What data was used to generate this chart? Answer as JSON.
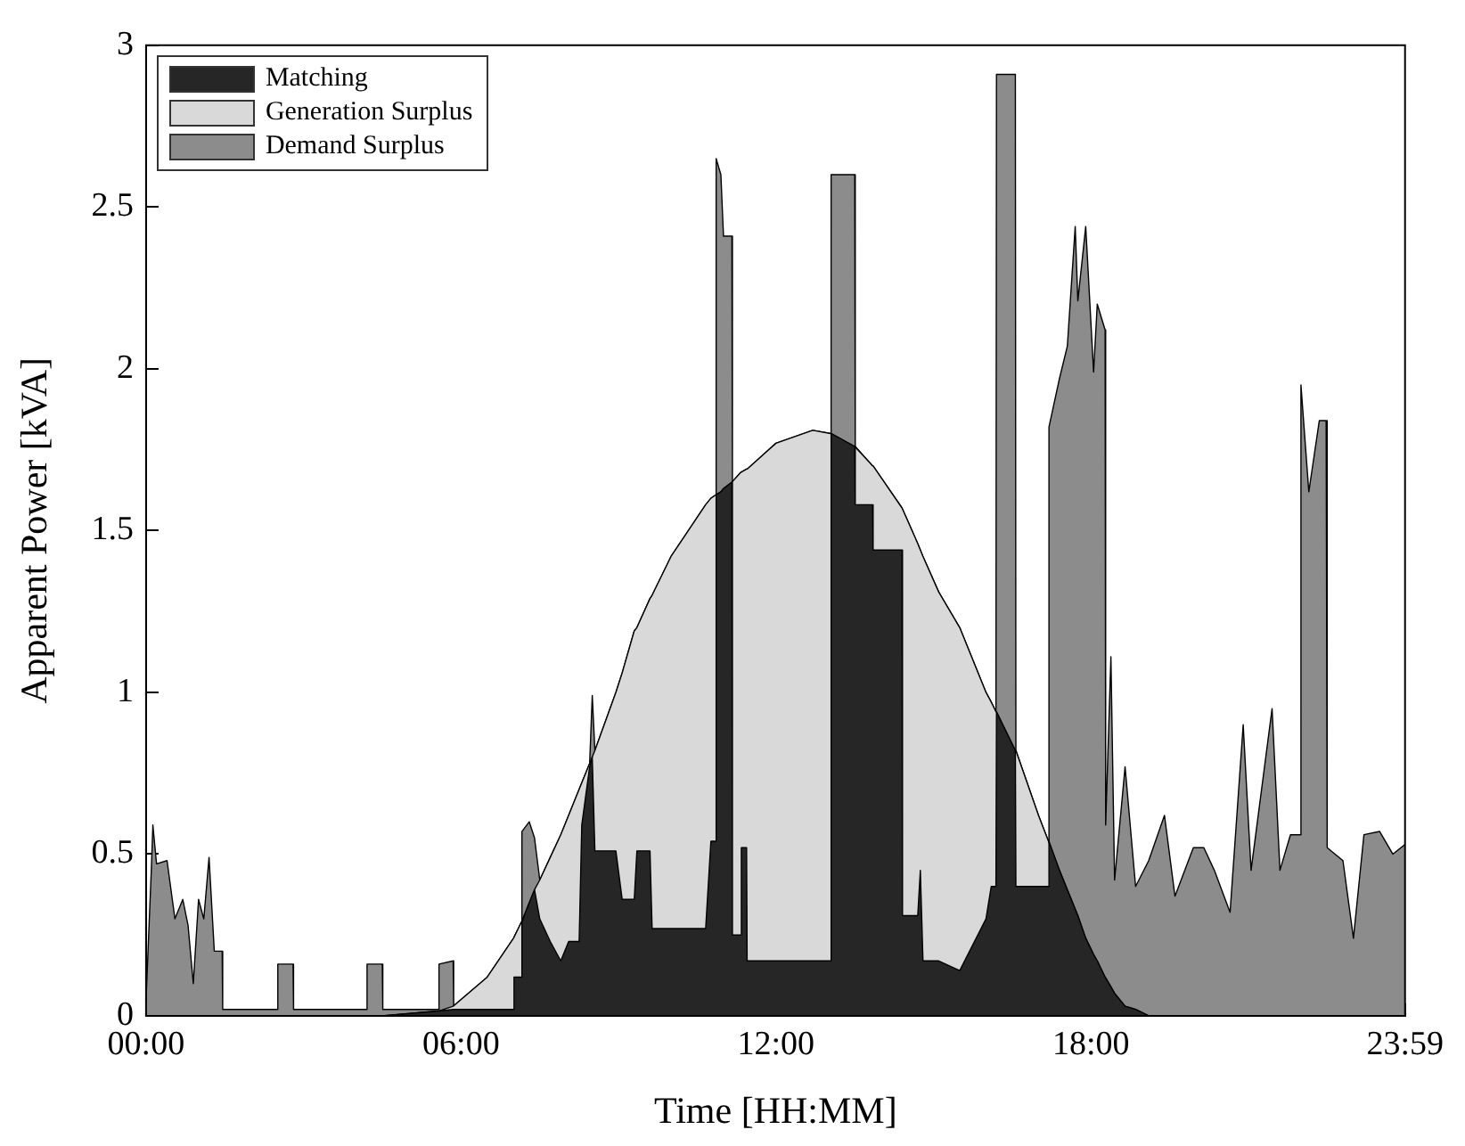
{
  "chart_data": {
    "type": "area",
    "stacked": true,
    "xlabel": "Time [HH:MM]",
    "ylabel": "Apparent Power [kVA]",
    "x": [
      0,
      0.1,
      0.13,
      0.2,
      0.4,
      0.55,
      0.7,
      0.8,
      0.9,
      1.0,
      1.1,
      1.2,
      1.3,
      1.45,
      1.46,
      2.5,
      2.51,
      2.8,
      2.81,
      4.2,
      4.21,
      4.5,
      4.51,
      5.57,
      5.58,
      5.85,
      5.86,
      6.5,
      7.0,
      7.01,
      7.15,
      7.16,
      7.3,
      7.4,
      7.5,
      7.7,
      7.9,
      8.05,
      8.25,
      8.3,
      8.45,
      8.5,
      8.55,
      8.95,
      9.07,
      9.3,
      9.35,
      9.6,
      9.64,
      10.0,
      10.66,
      10.76,
      10.85,
      10.86,
      10.95,
      11.0,
      11.16,
      11.17,
      11.33,
      11.34,
      11.44,
      11.45,
      12.0,
      12.7,
      13.04,
      13.05,
      13.5,
      13.51,
      13.84,
      13.85,
      14.4,
      14.41,
      14.7,
      14.75,
      14.8,
      15.1,
      15.5,
      16.0,
      16.1,
      16.19,
      16.2,
      16.56,
      16.57,
      17.0,
      17.19,
      17.2,
      17.4,
      17.55,
      17.7,
      17.75,
      17.9,
      18.05,
      18.12,
      18.27,
      18.28,
      18.38,
      18.45,
      18.65,
      18.85,
      19.1,
      19.4,
      19.6,
      19.95,
      20.15,
      20.35,
      20.65,
      20.9,
      21.05,
      21.45,
      21.6,
      21.8,
      21.98,
      22.0,
      22.15,
      22.35,
      22.48,
      22.5,
      22.8,
      23.0,
      23.2,
      23.5,
      23.75,
      23.983
    ],
    "series": [
      {
        "name": "Matching",
        "color": "#262626",
        "values": [
          0,
          0,
          0,
          0,
          0,
          0,
          0,
          0,
          0,
          0,
          0,
          0,
          0,
          0,
          0,
          0,
          0,
          0,
          0,
          0,
          0,
          0,
          0,
          0.015,
          0.015,
          0.02,
          0.02,
          0.02,
          0.02,
          0.12,
          0.12,
          0.29,
          0.35,
          0.39,
          0.3,
          0.23,
          0.17,
          0.23,
          0.23,
          0.59,
          0.77,
          0.8,
          0.51,
          0.51,
          0.36,
          0.36,
          0.51,
          0.51,
          0.27,
          0.27,
          0.27,
          0.54,
          0.54,
          1.61,
          1.62,
          1.63,
          1.65,
          0.25,
          0.25,
          0.52,
          0.52,
          0.17,
          0.17,
          0.17,
          0.17,
          1.8,
          1.76,
          1.58,
          1.58,
          1.44,
          1.44,
          0.31,
          0.31,
          0.45,
          0.17,
          0.17,
          0.14,
          0.3,
          0.4,
          0.4,
          0.94,
          0.82,
          0.4,
          0.4,
          0.4,
          0.54,
          0.45,
          0.39,
          0.33,
          0.31,
          0.24,
          0.19,
          0.17,
          0.12,
          0.12,
          0.09,
          0.07,
          0.03,
          0.02,
          0,
          0,
          0,
          0,
          0,
          0,
          0,
          0,
          0,
          0,
          0,
          0,
          0,
          0,
          0,
          0,
          0,
          0,
          0,
          0,
          0,
          0,
          0,
          0
        ]
      },
      {
        "name": "Generation Surplus",
        "color": "#d9d9d9",
        "values": [
          0,
          0,
          0,
          0,
          0,
          0,
          0,
          0,
          0,
          0,
          0,
          0,
          0,
          0,
          0,
          0,
          0,
          0,
          0,
          0,
          0,
          0,
          0,
          0,
          0,
          0.01,
          0.01,
          0.1,
          0.22,
          0.12,
          0.17,
          0,
          0,
          0,
          0.12,
          0.26,
          0.39,
          0.39,
          0.47,
          0.13,
          0.01,
          0,
          0.31,
          0.49,
          0.7,
          0.83,
          0.69,
          0.78,
          1.03,
          1.15,
          1.31,
          1.06,
          1.07,
          0,
          0,
          0,
          0,
          1.4,
          1.43,
          1.16,
          1.17,
          1.52,
          1.6,
          1.64,
          1.63,
          0,
          0,
          0.18,
          0.12,
          0.26,
          0.13,
          1.26,
          1.15,
          0.99,
          1.25,
          1.14,
          1.06,
          0.7,
          0.57,
          0.54,
          0,
          0,
          0.42,
          0.22,
          0.14,
          0,
          0,
          0,
          0,
          0,
          0,
          0,
          0,
          0,
          0,
          0,
          0,
          0,
          0,
          0,
          0,
          0,
          0,
          0,
          0,
          0,
          0,
          0,
          0,
          0,
          0,
          0,
          0,
          0,
          0,
          0,
          0,
          0,
          0,
          0,
          0,
          0,
          0
        ]
      },
      {
        "name": "Demand Surplus",
        "color": "#8c8c8c",
        "values": [
          0.05,
          0.45,
          0.59,
          0.47,
          0.48,
          0.3,
          0.36,
          0.28,
          0.1,
          0.36,
          0.3,
          0.49,
          0.2,
          0.2,
          0.02,
          0.02,
          0.16,
          0.16,
          0.02,
          0.02,
          0.16,
          0.16,
          0.02,
          0.005,
          0.145,
          0.14,
          0,
          0,
          0,
          0,
          0,
          0.28,
          0.25,
          0.16,
          0,
          0,
          0,
          0,
          0,
          0,
          0,
          0.19,
          0,
          0,
          0,
          0,
          0,
          0,
          0,
          0,
          0,
          0,
          0,
          1.04,
          0.98,
          0.78,
          0.76,
          0,
          0,
          0,
          0,
          0,
          0,
          0,
          0,
          0.8,
          0.84,
          0,
          0,
          0,
          0,
          0,
          0,
          0,
          0,
          0,
          0,
          0,
          0,
          0,
          1.97,
          2.09,
          0,
          0,
          0,
          1.28,
          1.52,
          1.68,
          2.11,
          1.9,
          2.2,
          1.8,
          2.03,
          2.0,
          0.47,
          1.02,
          0.35,
          0.74,
          0.38,
          0.48,
          0.62,
          0.37,
          0.52,
          0.52,
          0.45,
          0.32,
          0.9,
          0.45,
          0.95,
          0.45,
          0.56,
          0.56,
          1.95,
          1.62,
          1.84,
          1.84,
          0.52,
          0.48,
          0.24,
          0.56,
          0.57,
          0.5,
          0.53
        ]
      }
    ],
    "xlim": [
      0,
      23.983
    ],
    "xticks": [
      {
        "value": 0,
        "label": "00:00"
      },
      {
        "value": 6,
        "label": "06:00"
      },
      {
        "value": 12,
        "label": "12:00"
      },
      {
        "value": 18,
        "label": "18:00"
      },
      {
        "value": 23.983,
        "label": "23:59"
      }
    ],
    "ylim": [
      0,
      3
    ],
    "yticks": [
      0,
      0.5,
      1,
      1.5,
      2,
      2.5,
      3
    ],
    "grid": false,
    "legend": "top left",
    "marker": "none"
  }
}
